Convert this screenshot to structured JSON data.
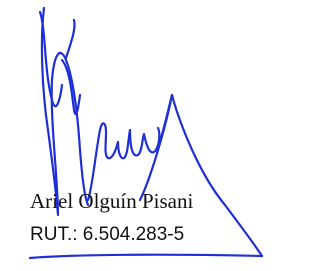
{
  "signature": {
    "name": "Ariel Olguín Pisani",
    "id": "RUT.: 6.504.283-5"
  }
}
